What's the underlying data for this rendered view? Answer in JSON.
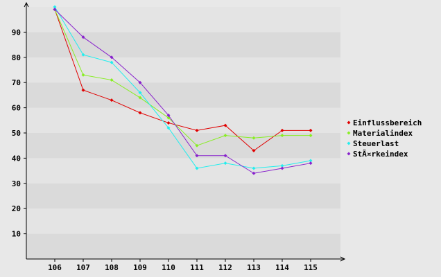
{
  "chart_data": {
    "type": "line",
    "x": [
      "106",
      "107",
      "108",
      "109",
      "110",
      "111",
      "112",
      "113",
      "114",
      "115"
    ],
    "series": [
      {
        "name": "Einflussbereich",
        "color": "#e00000",
        "values": [
          99,
          67,
          63,
          58,
          54,
          51,
          53,
          43,
          51,
          51
        ]
      },
      {
        "name": "Materialindex",
        "color": "#88ee22",
        "values": [
          99,
          73,
          71,
          64,
          56,
          45,
          49,
          48,
          49,
          49
        ]
      },
      {
        "name": "Steuerlast",
        "color": "#22eeee",
        "values": [
          100,
          81,
          78,
          66,
          52,
          36,
          38,
          36,
          37,
          39
        ]
      },
      {
        "name": "StÃ¤rkeindex",
        "color": "#8822cc",
        "values": [
          99,
          88,
          80,
          70,
          57,
          41,
          41,
          34,
          36,
          38
        ]
      }
    ],
    "yticks": [
      "10",
      "20",
      "30",
      "40",
      "50",
      "60",
      "70",
      "80",
      "90"
    ],
    "ylim": [
      0,
      100
    ],
    "title": "",
    "xlabel": "",
    "ylabel": "",
    "grid": "alternating horizontal bands",
    "legend": "right"
  }
}
